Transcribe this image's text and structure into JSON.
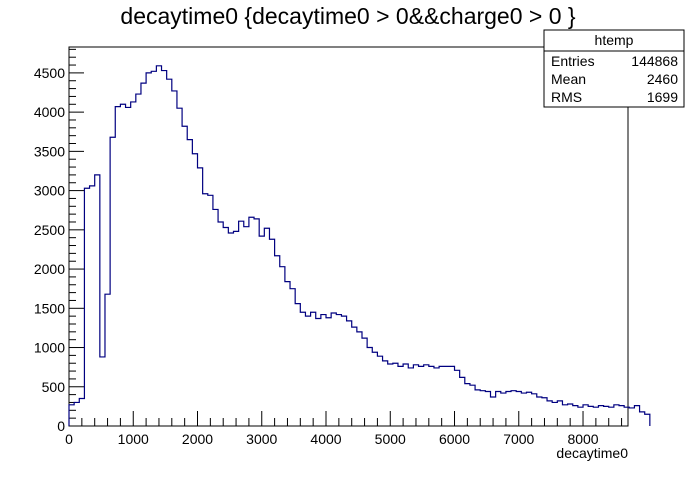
{
  "chart_data": {
    "type": "histogram",
    "title": "decaytime0 {decaytime0 > 0&&charge0 > 0 }",
    "xlabel": "decaytime0",
    "ylabel": "",
    "xlim": [
      0,
      8700
    ],
    "ylim": [
      0,
      4830
    ],
    "bin_width": 80,
    "bin_start": 0,
    "xticks": [
      0,
      1000,
      2000,
      3000,
      4000,
      5000,
      6000,
      7000,
      8000
    ],
    "yticks": [
      0,
      500,
      1000,
      1500,
      2000,
      2500,
      3000,
      3500,
      4000,
      4500
    ],
    "line_color": "#000080",
    "values": [
      270,
      300,
      350,
      3030,
      3060,
      3200,
      880,
      1680,
      3680,
      4070,
      4100,
      4060,
      4130,
      4230,
      4370,
      4500,
      4520,
      4590,
      4530,
      4420,
      4270,
      4050,
      3820,
      3650,
      3470,
      3290,
      2960,
      2940,
      2760,
      2600,
      2530,
      2460,
      2480,
      2610,
      2540,
      2660,
      2640,
      2420,
      2520,
      2380,
      2170,
      2030,
      1840,
      1750,
      1560,
      1450,
      1400,
      1450,
      1370,
      1420,
      1380,
      1440,
      1420,
      1400,
      1340,
      1260,
      1200,
      1120,
      1000,
      940,
      890,
      830,
      790,
      800,
      760,
      790,
      740,
      780,
      760,
      780,
      760,
      740,
      760,
      760,
      760,
      710,
      620,
      540,
      520,
      460,
      450,
      440,
      370,
      440,
      420,
      440,
      450,
      440,
      420,
      430,
      410,
      370,
      360,
      320,
      300,
      320,
      270,
      280,
      260,
      240,
      270,
      250,
      240,
      260,
      250,
      240,
      270,
      260,
      240,
      230,
      260,
      180,
      150
    ],
    "stats": {
      "name": "htemp",
      "rows": [
        {
          "label": "Entries",
          "value": "144868"
        },
        {
          "label": "Mean",
          "value": "2460"
        },
        {
          "label": "RMS",
          "value": "1699"
        }
      ]
    }
  }
}
